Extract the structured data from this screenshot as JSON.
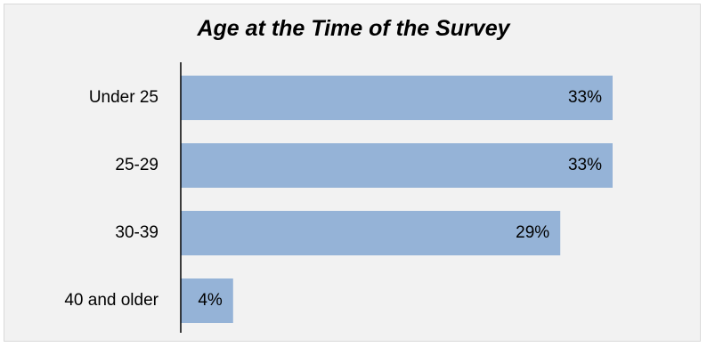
{
  "chart_data": {
    "type": "bar",
    "orientation": "horizontal",
    "title": "Age at the Time of the Survey",
    "categories": [
      "Under 25",
      "25-29",
      "30-39",
      "40 and older"
    ],
    "values": [
      33,
      33,
      29,
      4
    ],
    "value_labels": [
      "33%",
      "33%",
      "29%",
      "4%"
    ],
    "unit": "%",
    "xlim": [
      0,
      33
    ],
    "grid": false,
    "legend": "none",
    "bar_color": "#95b3d7",
    "axis_color": "#000000",
    "background_color": "#f2f2f2"
  }
}
